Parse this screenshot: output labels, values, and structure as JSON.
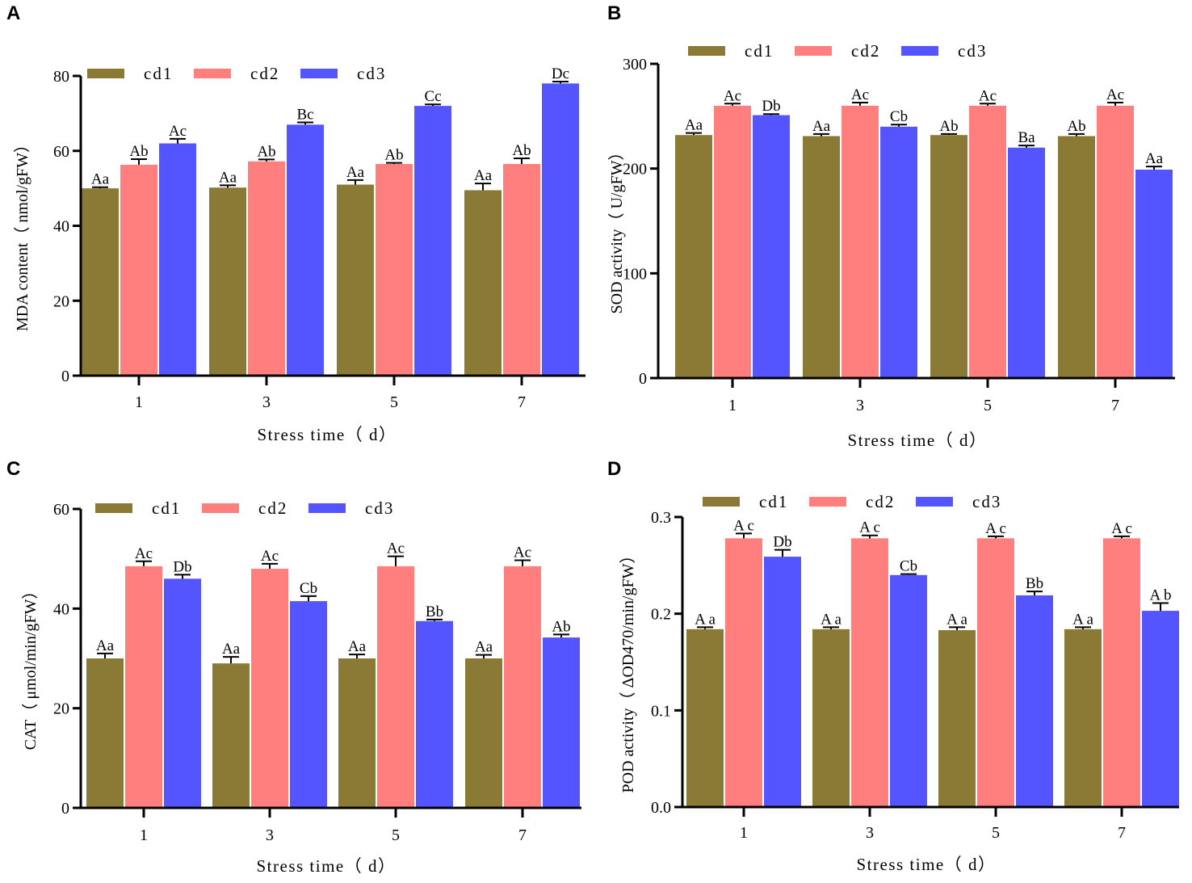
{
  "colors": {
    "cd1": "#8B7A36",
    "cd2": "#FF7F7F",
    "cd3": "#5555FF"
  },
  "chart_data": [
    {
      "panel": "A",
      "type": "bar",
      "categories": [
        "1",
        "3",
        "5",
        "7"
      ],
      "xlabel": "Stress time（ d）",
      "ylabel": "MDA content（ nmol/gFW）",
      "ylim": [
        0,
        80
      ],
      "yticks": [
        "0",
        "20",
        "40",
        "60",
        "80"
      ],
      "legend": "top",
      "series": [
        {
          "name": "cd1",
          "values": [
            50,
            50.2,
            51,
            49.5
          ],
          "errors": [
            0.3,
            0.6,
            1.2,
            1.8
          ],
          "labels": [
            "Aa",
            "Aa",
            "Aa",
            "Aa"
          ]
        },
        {
          "name": "cd2",
          "values": [
            56.3,
            57.2,
            56.5,
            56.5
          ],
          "errors": [
            1.5,
            0.5,
            0.3,
            1.5
          ],
          "labels": [
            "Ab",
            "Ab",
            "Ab",
            "Ab"
          ]
        },
        {
          "name": "cd3",
          "values": [
            62,
            67,
            72,
            78
          ],
          "errors": [
            1.2,
            0.6,
            0.4,
            0.5
          ],
          "labels": [
            "Ac",
            "Bc",
            "Cc",
            "Dc"
          ]
        }
      ]
    },
    {
      "panel": "B",
      "type": "bar",
      "categories": [
        "1",
        "3",
        "5",
        "7"
      ],
      "xlabel": "Stress time（ d）",
      "ylabel": "SOD activity（ U/gFW）",
      "ylim": [
        0,
        300
      ],
      "yticks": [
        "0",
        "100",
        "200",
        "300"
      ],
      "legend": "top",
      "series": [
        {
          "name": "cd1",
          "values": [
            232,
            231,
            232,
            231
          ],
          "errors": [
            2,
            2,
            1,
            2
          ],
          "labels": [
            "Aa",
            "Aa",
            "Ab",
            "Ab"
          ]
        },
        {
          "name": "cd2",
          "values": [
            260,
            260,
            260,
            260
          ],
          "errors": [
            2,
            3,
            2,
            3
          ],
          "labels": [
            "Ac",
            "Ac",
            "Ac",
            "Ac"
          ]
        },
        {
          "name": "cd3",
          "values": [
            251,
            240,
            220,
            199
          ],
          "errors": [
            1,
            2,
            2,
            3
          ],
          "labels": [
            "Db",
            "Cb",
            "Ba",
            "Aa"
          ]
        }
      ]
    },
    {
      "panel": "C",
      "type": "bar",
      "categories": [
        "1",
        "3",
        "5",
        "7"
      ],
      "xlabel": "Stress time（ d）",
      "ylabel": "CAT（ μmol/min/gFW）",
      "ylim": [
        0,
        60
      ],
      "yticks": [
        "0",
        "20",
        "40",
        "60"
      ],
      "legend": "top",
      "series": [
        {
          "name": "cd1",
          "values": [
            30,
            29,
            30,
            30
          ],
          "errors": [
            1,
            1.3,
            0.8,
            0.7
          ],
          "labels": [
            "Aa",
            "Aa",
            "Aa",
            "Aa"
          ]
        },
        {
          "name": "cd2",
          "values": [
            48.5,
            48,
            48.5,
            48.5
          ],
          "errors": [
            1,
            1,
            2,
            1.2
          ],
          "labels": [
            "Ac",
            "Ac",
            "Ac",
            "Ac"
          ]
        },
        {
          "name": "cd3",
          "values": [
            46,
            41.5,
            37.5,
            34.2
          ],
          "errors": [
            0.8,
            1,
            0.3,
            0.6
          ],
          "labels": [
            "Db",
            "Cb",
            "Bb",
            "Ab"
          ]
        }
      ]
    },
    {
      "panel": "D",
      "type": "bar",
      "categories": [
        "1",
        "3",
        "5",
        "7"
      ],
      "xlabel": "Stress time（ d）",
      "ylabel": "POD activity（ ΔOD470/min/gFW）",
      "ylim": [
        0,
        0.3
      ],
      "yticks": [
        "0.0",
        "0.1",
        "0.2",
        "0.3"
      ],
      "legend": "top",
      "series": [
        {
          "name": "cd1",
          "values": [
            0.184,
            0.184,
            0.183,
            0.184
          ],
          "errors": [
            0.002,
            0.002,
            0.003,
            0.002
          ],
          "labels": [
            "A a",
            "A a",
            "A a",
            "A a"
          ]
        },
        {
          "name": "cd2",
          "values": [
            0.278,
            0.278,
            0.278,
            0.278
          ],
          "errors": [
            0.005,
            0.003,
            0.002,
            0.002
          ],
          "labels": [
            "A c",
            "A c",
            "A c",
            "A c"
          ]
        },
        {
          "name": "cd3",
          "values": [
            0.259,
            0.24,
            0.219,
            0.203
          ],
          "errors": [
            0.007,
            0.001,
            0.004,
            0.008
          ],
          "labels": [
            "Db",
            "Cb",
            "Bb",
            "A b"
          ]
        }
      ]
    }
  ]
}
